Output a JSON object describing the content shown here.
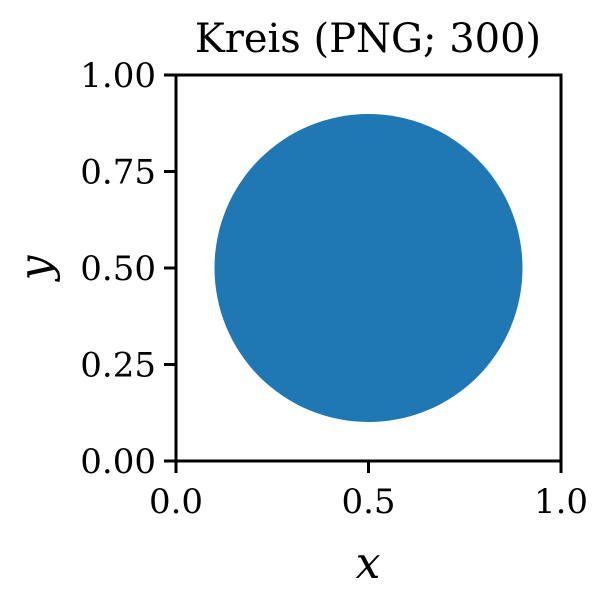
{
  "chart_data": {
    "type": "scatter",
    "title": "Kreis (PNG; 300)",
    "xlabel": "x",
    "ylabel": "y",
    "xlim": [
      0.0,
      1.0
    ],
    "ylim": [
      0.0,
      1.0
    ],
    "xticks": [
      "0.0",
      "0.5",
      "1.0"
    ],
    "yticks": [
      "0.00",
      "0.25",
      "0.50",
      "0.75",
      "1.00"
    ],
    "grid": false,
    "legend": "none",
    "shapes": [
      {
        "kind": "circle",
        "center": [
          0.5,
          0.5
        ],
        "radius": 0.4,
        "color": "#1f77b4"
      }
    ]
  }
}
